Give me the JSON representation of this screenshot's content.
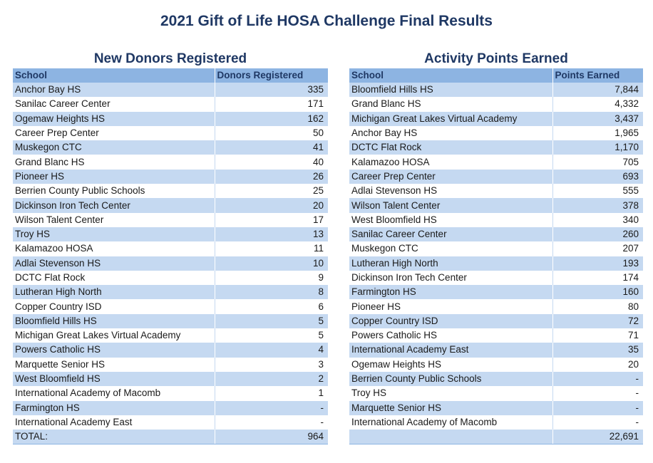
{
  "title": "2021 Gift of Life HOSA Challenge Final Results",
  "donors": {
    "title": "New Donors Registered",
    "headers": [
      "School",
      "Donors Registered"
    ],
    "rows": [
      [
        "Anchor Bay HS",
        "335"
      ],
      [
        "Sanilac Career Center",
        "171"
      ],
      [
        "Ogemaw Heights HS",
        "162"
      ],
      [
        "Career Prep Center",
        "50"
      ],
      [
        "Muskegon CTC",
        "41"
      ],
      [
        "Grand Blanc HS",
        "40"
      ],
      [
        "Pioneer HS",
        "26"
      ],
      [
        "Berrien County Public Schools",
        "25"
      ],
      [
        "Dickinson Iron Tech Center",
        "20"
      ],
      [
        "Wilson Talent Center",
        "17"
      ],
      [
        "Troy HS",
        "13"
      ],
      [
        "Kalamazoo HOSA",
        "11"
      ],
      [
        "Adlai Stevenson HS",
        "10"
      ],
      [
        "DCTC Flat Rock",
        "9"
      ],
      [
        "Lutheran High North",
        "8"
      ],
      [
        "Copper Country ISD",
        "6"
      ],
      [
        "Bloomfield Hills HS",
        "5"
      ],
      [
        "Michigan Great Lakes Virtual Academy",
        "5"
      ],
      [
        "Powers Catholic HS",
        "4"
      ],
      [
        "Marquette Senior HS",
        "3"
      ],
      [
        "West Bloomfield HS",
        "2"
      ],
      [
        "International Academy of Macomb",
        "1"
      ],
      [
        "Farmington HS",
        "-"
      ],
      [
        "International Academy East",
        "-"
      ],
      [
        "TOTAL:",
        "964"
      ]
    ]
  },
  "points": {
    "title": "Activity Points Earned",
    "headers": [
      "School",
      "Points Earned"
    ],
    "rows": [
      [
        "Bloomfield Hills HS",
        "7,844"
      ],
      [
        "Grand Blanc HS",
        "4,332"
      ],
      [
        "Michigan Great Lakes Virtual Academy",
        "3,437"
      ],
      [
        "Anchor Bay HS",
        "1,965"
      ],
      [
        "DCTC Flat Rock",
        "1,170"
      ],
      [
        "Kalamazoo HOSA",
        "705"
      ],
      [
        "Career Prep Center",
        "693"
      ],
      [
        "Adlai Stevenson HS",
        "555"
      ],
      [
        "Wilson Talent Center",
        "378"
      ],
      [
        "West Bloomfield HS",
        "340"
      ],
      [
        "Sanilac Career Center",
        "260"
      ],
      [
        "Muskegon CTC",
        "207"
      ],
      [
        "Lutheran High North",
        "193"
      ],
      [
        "Dickinson Iron Tech Center",
        "174"
      ],
      [
        "Farmington HS",
        "160"
      ],
      [
        "Pioneer HS",
        "80"
      ],
      [
        "Copper Country ISD",
        "72"
      ],
      [
        "Powers Catholic HS",
        "71"
      ],
      [
        "International Academy East",
        "35"
      ],
      [
        "Ogemaw Heights HS",
        "20"
      ],
      [
        "Berrien County Public Schools",
        "-"
      ],
      [
        "Troy HS",
        "-"
      ],
      [
        "Marquette Senior HS",
        "-"
      ],
      [
        "International Academy of Macomb",
        "-"
      ],
      [
        "",
        "22,691"
      ]
    ]
  }
}
